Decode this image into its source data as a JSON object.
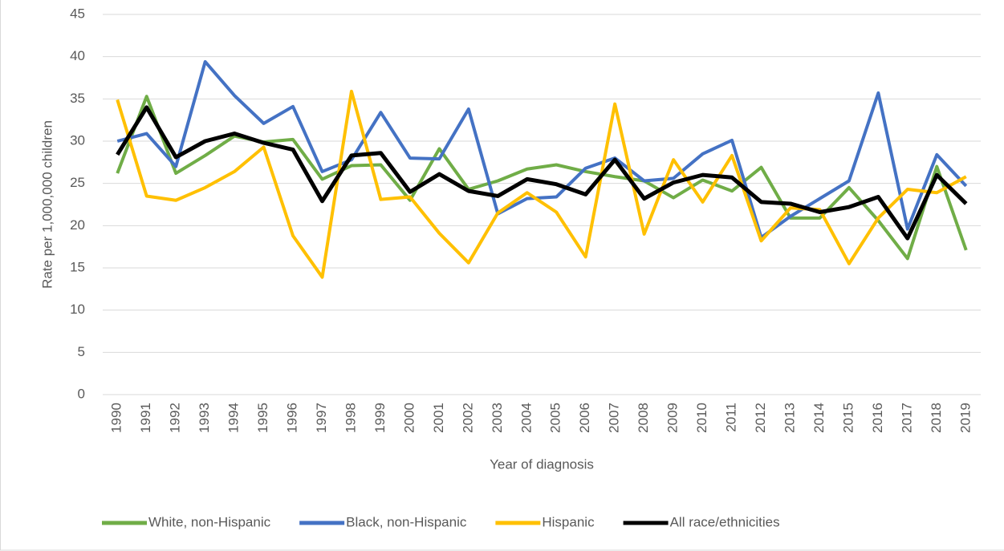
{
  "chart_data": {
    "type": "line",
    "x_label": "Year of diagnosis",
    "y_label": "Rate per 1,000,000 children",
    "categories": [
      "1990",
      "1991",
      "1992",
      "1993",
      "1994",
      "1995",
      "1996",
      "1997",
      "1998",
      "1999",
      "2000",
      "2001",
      "2002",
      "2003",
      "2004",
      "2005",
      "2006",
      "2007",
      "2008",
      "2009",
      "2010",
      "2011",
      "2012",
      "2013",
      "2014",
      "2015",
      "2016",
      "2017",
      "2018",
      "2019"
    ],
    "series": [
      {
        "name": "White, non-Hispanic",
        "color": "#70ad47",
        "values": [
          26.2,
          35.3,
          26.2,
          28.3,
          30.6,
          29.9,
          30.2,
          25.5,
          27.1,
          27.2,
          23.0,
          29.1,
          24.3,
          25.3,
          26.7,
          27.2,
          26.4,
          25.8,
          25.3,
          23.3,
          25.4,
          24.1,
          26.9,
          20.9,
          20.9,
          24.5,
          20.6,
          16.1,
          27.0,
          17.1
        ]
      },
      {
        "name": "Black, non-Hispanic",
        "color": "#4472c4",
        "values": [
          30.0,
          30.9,
          27.0,
          39.4,
          35.4,
          32.1,
          34.1,
          26.4,
          27.8,
          33.4,
          28.0,
          27.9,
          33.8,
          21.4,
          23.2,
          23.4,
          26.8,
          28.0,
          25.3,
          25.6,
          28.5,
          30.1,
          18.6,
          21.1,
          23.2,
          25.3,
          35.7,
          19.6,
          28.4,
          24.7
        ]
      },
      {
        "name": "Hispanic",
        "color": "#ffc000",
        "values": [
          34.9,
          23.5,
          23.0,
          24.5,
          26.4,
          29.3,
          18.8,
          13.9,
          35.9,
          23.1,
          23.4,
          19.1,
          15.6,
          21.5,
          23.9,
          21.6,
          16.3,
          34.4,
          19.0,
          27.8,
          22.8,
          28.3,
          18.2,
          22.1,
          21.9,
          15.5,
          20.9,
          24.3,
          23.9,
          25.8
        ]
      },
      {
        "name": "All race/ethnicities",
        "color": "#000000",
        "values": [
          28.4,
          34.0,
          28.1,
          30.0,
          30.9,
          29.8,
          29.0,
          22.9,
          28.3,
          28.6,
          24.0,
          26.1,
          24.1,
          23.5,
          25.5,
          24.9,
          23.7,
          27.8,
          23.2,
          25.1,
          26.0,
          25.7,
          22.8,
          22.6,
          21.6,
          22.2,
          23.4,
          18.5,
          26.0,
          22.6
        ]
      }
    ],
    "ylim": [
      0,
      45
    ],
    "yticks": [
      0,
      5,
      10,
      15,
      20,
      25,
      30,
      35,
      40,
      45
    ],
    "grid": true,
    "legend": "bottom"
  }
}
